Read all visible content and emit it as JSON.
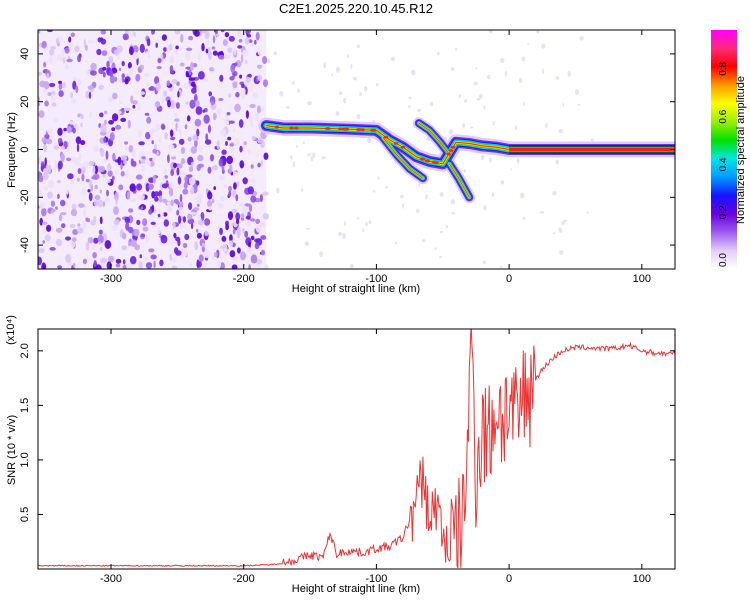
{
  "figure": {
    "title": "C2E1.2025.220.10.45.R12"
  },
  "chart_data": [
    {
      "type": "heatmap",
      "xlabel": "Height of straight line (km)",
      "ylabel": "Frequency (Hz)",
      "xlim": [
        -355,
        125
      ],
      "ylim": [
        -50,
        50
      ],
      "xticks": [
        -300,
        -200,
        -100,
        0,
        100
      ],
      "xtick_labels": [
        "-300",
        "-200",
        "-100",
        "0",
        "100"
      ],
      "yticks": [
        -40,
        -20,
        0,
        20,
        40
      ],
      "ytick_labels": [
        "-40",
        "-20",
        "0",
        "20",
        "40"
      ],
      "noise_region_x": [
        -355,
        -183
      ],
      "ridge": [
        [
          -183,
          10
        ],
        [
          -170,
          9
        ],
        [
          -150,
          9
        ],
        [
          -120,
          8.5
        ],
        [
          -100,
          8
        ],
        [
          -90,
          4
        ],
        [
          -80,
          1
        ],
        [
          -70,
          -3
        ],
        [
          -60,
          -5
        ],
        [
          -50,
          -6
        ],
        [
          -40,
          3
        ],
        [
          -30,
          2.5
        ],
        [
          -20,
          1.5
        ],
        [
          -10,
          1
        ],
        [
          0,
          0
        ],
        [
          125,
          0
        ]
      ],
      "branches": [
        {
          "name": "",
          "points": [
            [
              -95,
              5
            ],
            [
              -85,
              -2
            ],
            [
              -75,
              -8
            ],
            [
              -65,
              -12
            ]
          ]
        },
        {
          "name": "",
          "points": [
            [
              -68,
              11
            ],
            [
              -60,
              8
            ],
            [
              -52,
              3
            ],
            [
              -45,
              -2
            ]
          ]
        },
        {
          "name": "",
          "points": [
            [
              -45,
              -6
            ],
            [
              -38,
              -12
            ],
            [
              -30,
              -20
            ]
          ]
        }
      ],
      "colorbar": {
        "label": "Normalized spectral amplitude",
        "ticks": [
          0.0,
          0.2,
          0.4,
          0.6,
          0.8
        ],
        "tick_labels": [
          "0.0",
          "0.2",
          "0.4",
          "0.6",
          "0.8"
        ],
        "range": [
          0,
          1
        ],
        "colors": [
          "#ffffff",
          "#e3cdf8",
          "#9b5cf0",
          "#6a00e0",
          "#1515ff",
          "#0099ff",
          "#00e6e6",
          "#00e000",
          "#99ee00",
          "#ffff00",
          "#ff9900",
          "#ff0000",
          "#ff2a7a",
          "#ff00ff"
        ]
      }
    },
    {
      "type": "line",
      "xlabel": "Height of straight line (km)",
      "ylabel": "SNR (10 * v/v)",
      "y_scale_label": "(x10⁴)",
      "xlim": [
        -355,
        125
      ],
      "ylim": [
        0,
        2.2
      ],
      "xticks": [
        -300,
        -200,
        -100,
        0,
        100
      ],
      "xtick_labels": [
        "-300",
        "-200",
        "-100",
        "0",
        "100"
      ],
      "yticks": [
        0.5,
        1.0,
        1.5,
        2.0
      ],
      "ytick_labels": [
        "0.5",
        "1.0",
        "1.5",
        "2.0"
      ],
      "series": [
        {
          "name": "",
          "color": "#ee3333",
          "points": [
            [
              -355,
              0.03
            ],
            [
              -250,
              0.03
            ],
            [
              -200,
              0.03
            ],
            [
              -180,
              0.04
            ],
            [
              -165,
              0.06
            ],
            [
              -150,
              0.12
            ],
            [
              -140,
              0.1
            ],
            [
              -135,
              0.32
            ],
            [
              -130,
              0.13
            ],
            [
              -120,
              0.16
            ],
            [
              -110,
              0.14
            ],
            [
              -100,
              0.18
            ],
            [
              -90,
              0.2
            ],
            [
              -80,
              0.28
            ],
            [
              -70,
              0.6
            ],
            [
              -65,
              0.85
            ],
            [
              -60,
              0.45
            ],
            [
              -55,
              0.6
            ],
            [
              -50,
              0.3
            ],
            [
              -45,
              0.25
            ],
            [
              -40,
              0.22
            ],
            [
              -35,
              0.4
            ],
            [
              -30,
              1.5
            ],
            [
              -28,
              2.12
            ],
            [
              -25,
              0.9
            ],
            [
              -20,
              1.3
            ],
            [
              -15,
              1.2
            ],
            [
              -10,
              1.5
            ],
            [
              -5,
              1.4
            ],
            [
              0,
              1.5
            ],
            [
              5,
              1.3
            ],
            [
              10,
              1.55
            ],
            [
              20,
              1.75
            ],
            [
              30,
              1.9
            ],
            [
              40,
              2.0
            ],
            [
              50,
              2.03
            ],
            [
              60,
              2.03
            ],
            [
              70,
              2.02
            ],
            [
              80,
              2.02
            ],
            [
              90,
              2.05
            ],
            [
              100,
              2.0
            ],
            [
              110,
              1.98
            ],
            [
              125,
              1.97
            ]
          ]
        }
      ]
    }
  ]
}
